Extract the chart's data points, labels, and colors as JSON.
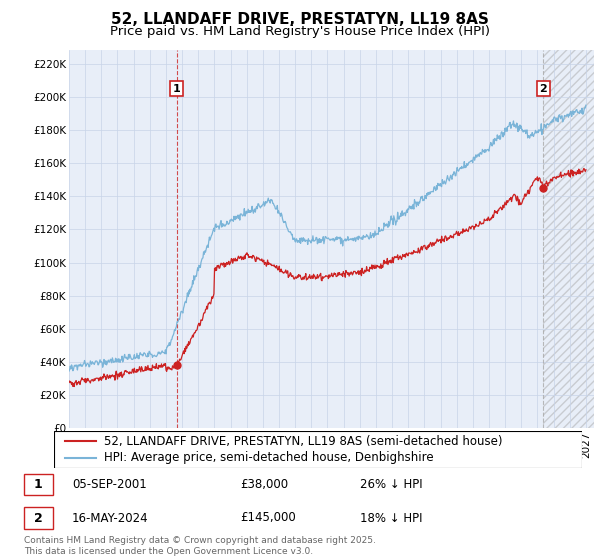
{
  "title": "52, LLANDAFF DRIVE, PRESTATYN, LL19 8AS",
  "subtitle": "Price paid vs. HM Land Registry's House Price Index (HPI)",
  "yticks": [
    0,
    20000,
    40000,
    60000,
    80000,
    100000,
    120000,
    140000,
    160000,
    180000,
    200000,
    220000
  ],
  "ytick_labels": [
    "£0",
    "£20K",
    "£40K",
    "£60K",
    "£80K",
    "£100K",
    "£120K",
    "£140K",
    "£160K",
    "£180K",
    "£200K",
    "£220K"
  ],
  "xlim_start": 1995,
  "xlim_end": 2027.5,
  "ylim_min": 0,
  "ylim_max": 228000,
  "hpi_color": "#7ab4d8",
  "price_color": "#cc2222",
  "vline1_color": "#cc2222",
  "vline2_color": "#aaaaaa",
  "grid_color": "#c8d4e8",
  "background_color": "#e8eef8",
  "marker1_year": 2001.67,
  "marker1_price": 38000,
  "marker1_hpi": 200000,
  "marker2_year": 2024.37,
  "marker2_price": 145000,
  "marker2_hpi": 200000,
  "legend_line1": "52, LLANDAFF DRIVE, PRESTATYN, LL19 8AS (semi-detached house)",
  "legend_line2": "HPI: Average price, semi-detached house, Denbighshire",
  "annotation1_label": "1",
  "annotation1_date": "05-SEP-2001",
  "annotation1_price": "£38,000",
  "annotation1_hpi": "26% ↓ HPI",
  "annotation2_label": "2",
  "annotation2_date": "16-MAY-2024",
  "annotation2_price": "£145,000",
  "annotation2_hpi": "18% ↓ HPI",
  "footer": "Contains HM Land Registry data © Crown copyright and database right 2025.\nThis data is licensed under the Open Government Licence v3.0.",
  "title_fontsize": 11,
  "subtitle_fontsize": 9.5,
  "tick_fontsize": 7.5,
  "legend_fontsize": 8.5,
  "annotation_fontsize": 8.5
}
